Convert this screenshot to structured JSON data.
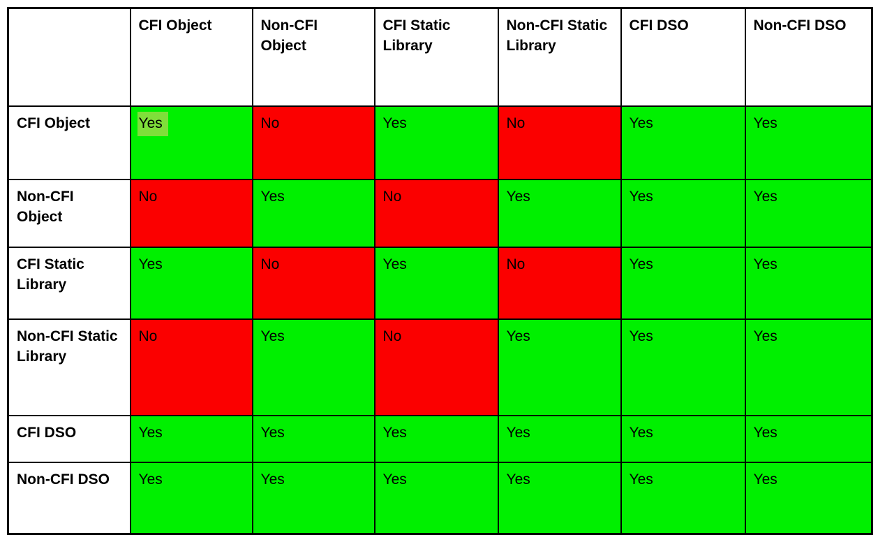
{
  "colors": {
    "yes_bg": "#00f000",
    "no_bg": "#fb0000",
    "highlight_bg": "#7fdf3a",
    "border": "#000000",
    "header_bg": "#ffffff",
    "text": "#000000"
  },
  "chart_data": {
    "type": "table",
    "column_headers": [
      "",
      "CFI Object",
      "Non-CFI Object",
      "CFI Static Library",
      "Non-CFI Static Library",
      "CFI DSO",
      "Non-CFI DSO"
    ],
    "row_headers": [
      "CFI Object",
      "Non-CFI Object",
      "CFI Static Library",
      "Non-CFI Static Library",
      "CFI DSO",
      "Non-CFI DSO"
    ],
    "values": [
      [
        "Yes",
        "No",
        "Yes",
        "No",
        "Yes",
        "Yes"
      ],
      [
        "No",
        "Yes",
        "No",
        "Yes",
        "Yes",
        "Yes"
      ],
      [
        "Yes",
        "No",
        "Yes",
        "No",
        "Yes",
        "Yes"
      ],
      [
        "No",
        "Yes",
        "No",
        "Yes",
        "Yes",
        "Yes"
      ],
      [
        "Yes",
        "Yes",
        "Yes",
        "Yes",
        "Yes",
        "Yes"
      ],
      [
        "Yes",
        "Yes",
        "Yes",
        "Yes",
        "Yes",
        "Yes"
      ]
    ],
    "cell_bg_by_value": {
      "Yes": "#00f000",
      "No": "#fb0000"
    },
    "highlighted_cell": {
      "row": 0,
      "col": 0,
      "bg": "#7fdf3a"
    },
    "grid": true,
    "legend_position": "none"
  }
}
